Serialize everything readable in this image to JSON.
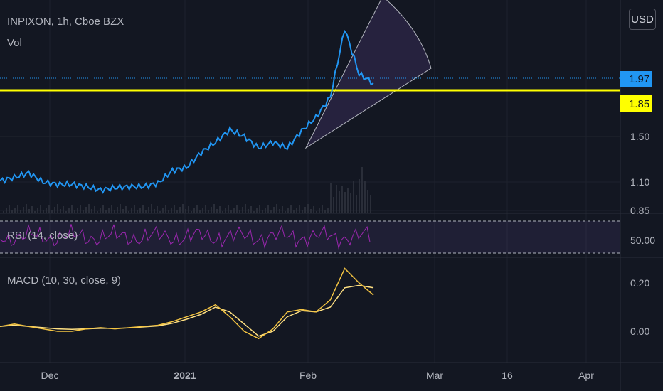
{
  "header": {
    "symbol_line": "INPIXON, 1h, Cboe BZX",
    "volume_label": "Vol",
    "currency_button": "USD"
  },
  "colors": {
    "background": "#131722",
    "price_line": "#2196f3",
    "horizontal_level": "#ffff00",
    "rsi_line": "#9c27b0",
    "rsi_band": "#7e57c2",
    "macd_line": "#f5c542",
    "signal_line": "#ffe082",
    "volume_bar": "#2a2e39",
    "grid": "#1e222d"
  },
  "indicators": {
    "rsi_label": "RSI (14, close)",
    "macd_label": "MACD (10, 30, close, 9)"
  },
  "chart_data": {
    "type": "line",
    "title": "INPIXON, 1h, Cboe BZX",
    "x_ticks": [
      "Dec",
      "2021",
      "Feb",
      "Mar",
      "16",
      "Apr"
    ],
    "price": {
      "y_ticks": [
        0.85,
        1.1,
        1.5
      ],
      "last_price": "1.97",
      "level_price": "1.85",
      "series": {
        "name": "",
        "x": [
          "Nov 23",
          "Nov 26",
          "Nov 30",
          "Dec 3",
          "Dec 7",
          "Dec 10",
          "Dec 14",
          "Dec 17",
          "Dec 21",
          "Dec 24",
          "Dec 28",
          "Dec 31",
          "Jan 4",
          "Jan 7",
          "Jan 11",
          "Jan 14",
          "Jan 18",
          "Jan 21",
          "Jan 25",
          "Jan 28",
          "Feb 1",
          "Feb 4",
          "Feb 7",
          "Feb 9",
          "Feb 11",
          "Feb 12",
          "Feb 13"
        ],
        "values": [
          1.11,
          1.14,
          1.18,
          1.1,
          1.08,
          1.08,
          1.06,
          1.03,
          1.05,
          1.06,
          1.06,
          1.09,
          1.2,
          1.23,
          1.36,
          1.45,
          1.56,
          1.5,
          1.4,
          1.45,
          1.4,
          1.55,
          1.67,
          1.85,
          2.45,
          2.05,
          1.97
        ]
      }
    },
    "rsi": {
      "y_ticks": [
        50.0
      ],
      "band": [
        30,
        70
      ]
    },
    "macd": {
      "y_ticks": [
        0.0,
        0.2
      ],
      "macd": [
        0.02,
        0.03,
        0.02,
        0.01,
        0.0,
        0.0,
        0.01,
        0.015,
        0.01,
        0.015,
        0.02,
        0.025,
        0.04,
        0.06,
        0.08,
        0.11,
        0.06,
        0.0,
        -0.03,
        0.01,
        0.08,
        0.09,
        0.08,
        0.13,
        0.26,
        0.2,
        0.15
      ],
      "signal": [
        0.02,
        0.025,
        0.02,
        0.015,
        0.01,
        0.008,
        0.01,
        0.012,
        0.012,
        0.014,
        0.018,
        0.022,
        0.033,
        0.05,
        0.07,
        0.1,
        0.08,
        0.03,
        -0.02,
        0.0,
        0.06,
        0.085,
        0.08,
        0.1,
        0.18,
        0.19,
        0.18
      ]
    }
  }
}
